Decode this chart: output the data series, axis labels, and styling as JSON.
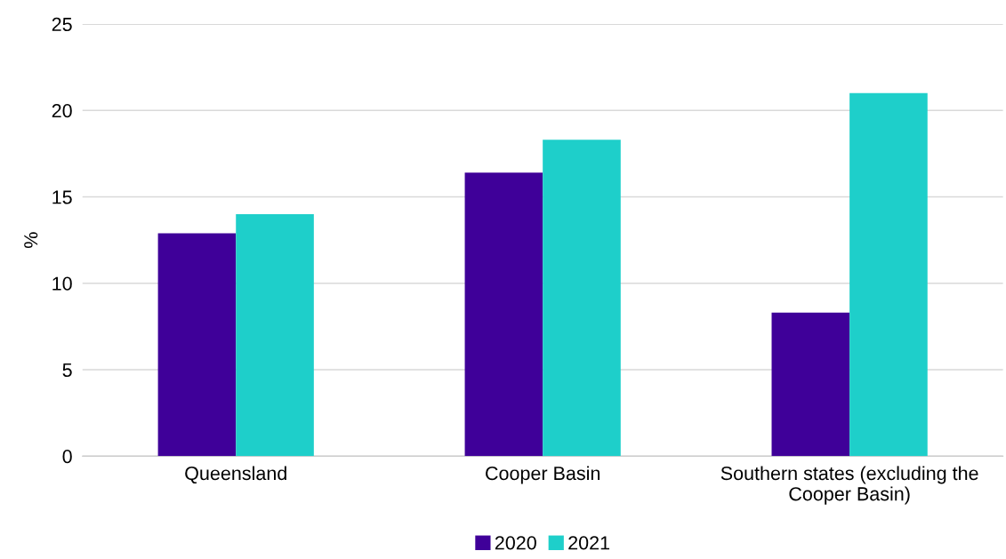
{
  "chart_data": {
    "type": "bar",
    "ylabel": "%",
    "categories": [
      "Queensland",
      "Cooper Basin",
      "Southern states (excluding the\nCooper Basin)"
    ],
    "series": [
      {
        "name": "2020",
        "color": "#3f0099",
        "values": [
          12.9,
          16.4,
          8.3
        ]
      },
      {
        "name": "2021",
        "color": "#1ecfca",
        "values": [
          14.0,
          18.3,
          21.0
        ]
      }
    ],
    "ylim": [
      0,
      25
    ],
    "yticks": [
      0,
      5,
      10,
      15,
      20,
      25
    ],
    "grid": "y",
    "legend": "bottom"
  }
}
